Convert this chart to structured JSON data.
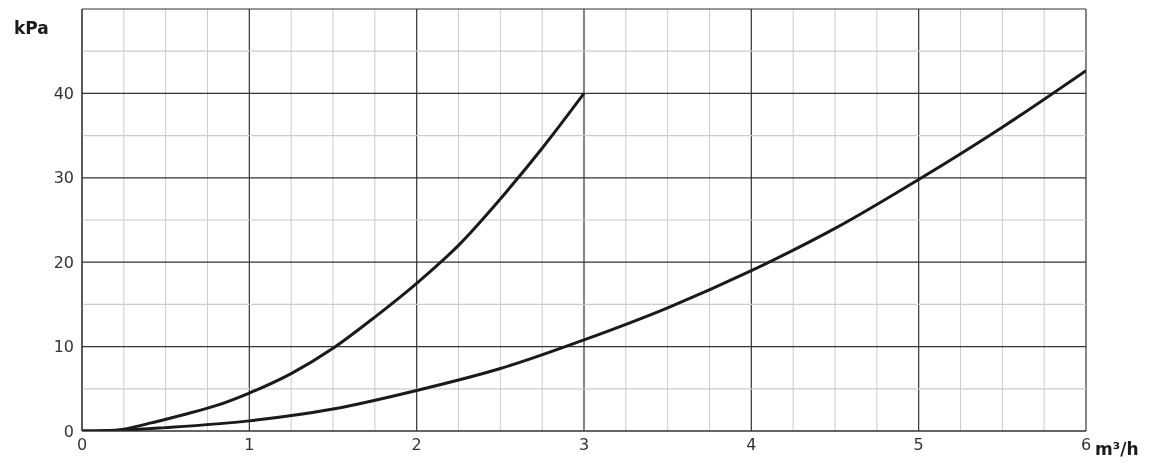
{
  "chart_data": {
    "type": "line",
    "xlabel": "m³/h",
    "ylabel": "kPa",
    "xlim": [
      0,
      6
    ],
    "ylim": [
      0,
      50
    ],
    "xticks": [
      0,
      {
        "value": 0.25,
        "label": null
      },
      {
        "value": 0.5,
        "label": null
      },
      {
        "value": 0.75,
        "label": null
      },
      1,
      {
        "value": 1.25,
        "label": null
      },
      {
        "value": 1.5,
        "label": null
      },
      {
        "value": 1.75,
        "label": null
      },
      2,
      {
        "value": 2.25,
        "label": null
      },
      {
        "value": 2.5,
        "label": null
      },
      {
        "value": 2.75,
        "label": null
      },
      3,
      {
        "value": 3.25,
        "label": null
      },
      {
        "value": 3.5,
        "label": null
      },
      {
        "value": 3.75,
        "label": null
      },
      4,
      {
        "value": 4.25,
        "label": null
      },
      {
        "value": 4.5,
        "label": null
      },
      {
        "value": 4.75,
        "label": null
      },
      5,
      {
        "value": 5.25,
        "label": null
      },
      {
        "value": 5.5,
        "label": null
      },
      {
        "value": 5.75,
        "label": null
      },
      6
    ],
    "yticks": [
      0,
      {
        "value": 5,
        "label": null
      },
      10,
      {
        "value": 15,
        "label": null
      },
      20,
      {
        "value": 25,
        "label": null
      },
      30,
      {
        "value": 35,
        "label": null
      },
      40,
      {
        "value": 45,
        "label": null
      },
      {
        "value": 50,
        "label": null
      }
    ],
    "grid": true,
    "marker": "none",
    "line_style": "solid",
    "series": [
      {
        "color": "#1a1a1a",
        "x": [
          0,
          0.2,
          0.4,
          0.6,
          0.8,
          1,
          1.25,
          1.5,
          1.75,
          2,
          2.25,
          2.5,
          2.75,
          3
        ],
        "values": [
          0,
          0.1,
          0.9,
          1.9,
          3,
          4.5,
          6.8,
          9.8,
          13.5,
          17.5,
          22,
          27.5,
          33.5,
          40
        ]
      },
      {
        "color": "#1a1a1a",
        "x": [
          0,
          0.25,
          0.5,
          1,
          1.5,
          2,
          2.5,
          3,
          3.5,
          4,
          4.5,
          5,
          5.5,
          6
        ],
        "values": [
          0,
          0.1,
          0.4,
          1.2,
          2.6,
          4.8,
          7.4,
          10.8,
          14.6,
          19,
          24,
          29.8,
          36,
          42.7
        ]
      }
    ]
  }
}
